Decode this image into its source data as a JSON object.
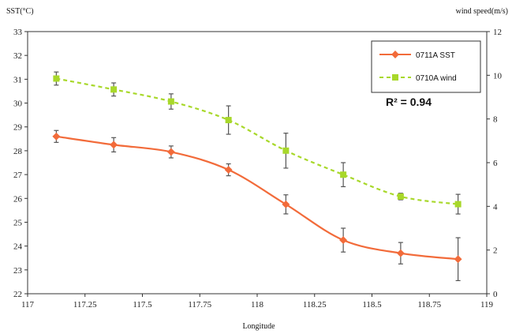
{
  "chart_data": {
    "type": "line",
    "xlabel": "Longitude",
    "ylabel_left": "SST(°C)",
    "ylabel_right": "wind speed(m/s)",
    "xlim": [
      117,
      119
    ],
    "ylim_left": [
      22,
      33
    ],
    "ylim_right": [
      0,
      12
    ],
    "x_ticks": [
      "117",
      "117.25",
      "117.5",
      "117.75",
      "118",
      "118.25",
      "118.5",
      "118.75",
      "119"
    ],
    "y_left_ticks": [
      "22",
      "23",
      "24",
      "25",
      "26",
      "27",
      "28",
      "29",
      "30",
      "31",
      "32",
      "33"
    ],
    "y_right_ticks": [
      "0",
      "2",
      "4",
      "6",
      "8",
      "10",
      "12"
    ],
    "annotation": "R² = 0.94",
    "legend_position": "top-right",
    "grid": false,
    "series": [
      {
        "name": "0711A SST",
        "axis": "left",
        "color": "#f26b3a",
        "marker": "diamond",
        "line_style": "solid",
        "x": [
          117.125,
          117.375,
          117.625,
          117.875,
          118.125,
          118.375,
          118.625,
          118.875
        ],
        "y": [
          28.6,
          28.25,
          27.95,
          27.2,
          25.75,
          24.25,
          23.7,
          23.45
        ],
        "error": [
          0.25,
          0.3,
          0.25,
          0.25,
          0.4,
          0.5,
          0.45,
          0.9
        ]
      },
      {
        "name": "0710A wind",
        "axis": "right",
        "color": "#a8d82a",
        "marker": "square",
        "line_style": "dashed",
        "x": [
          117.125,
          117.375,
          117.625,
          117.875,
          118.125,
          118.375,
          118.625,
          118.875
        ],
        "y": [
          9.85,
          9.35,
          8.8,
          7.95,
          6.55,
          5.45,
          4.45,
          4.1
        ],
        "error": [
          0.3,
          0.3,
          0.35,
          0.65,
          0.8,
          0.55,
          0.15,
          0.45
        ]
      }
    ]
  }
}
